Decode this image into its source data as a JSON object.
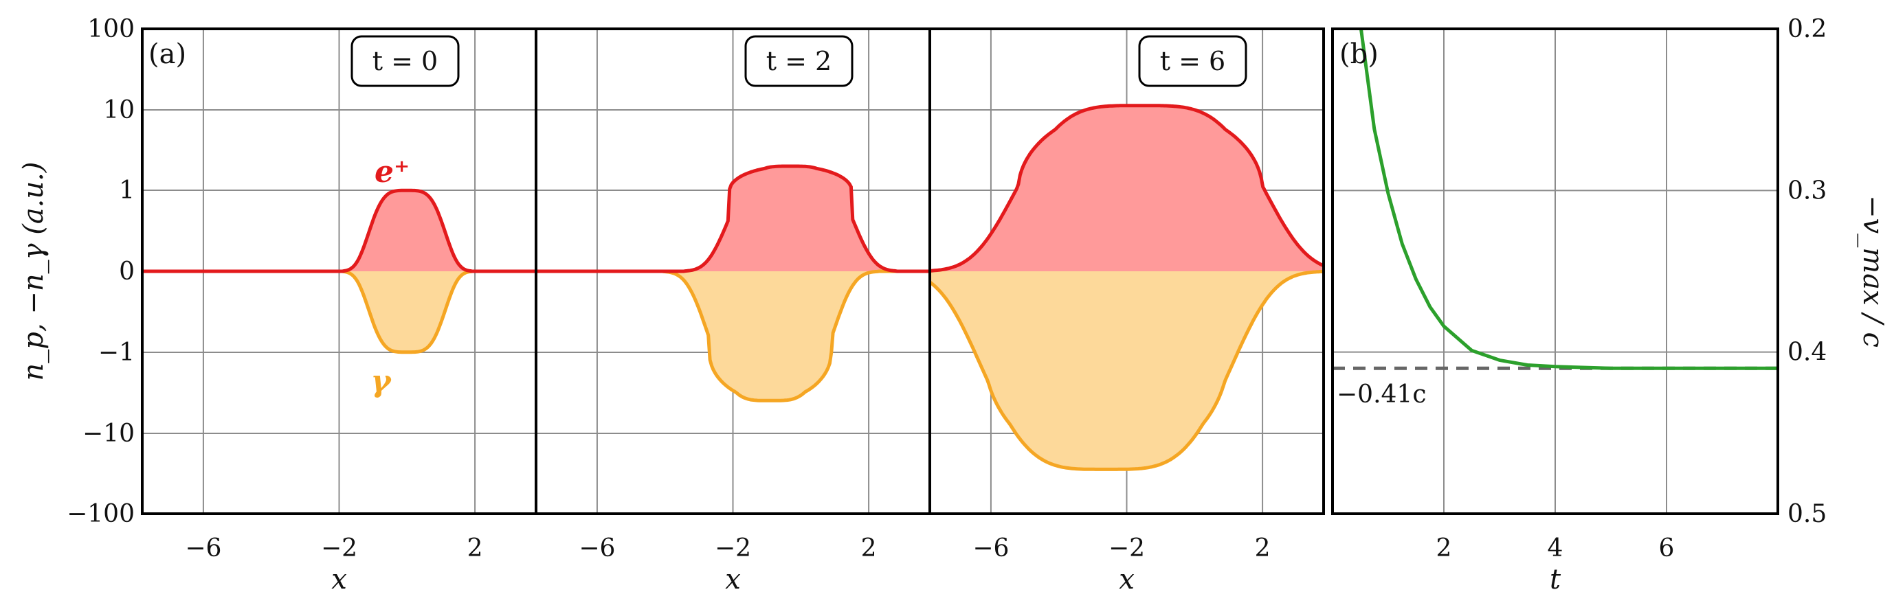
{
  "chart_data": [
    {
      "panel_label": "(a)",
      "type": "area",
      "ylabel": "n_p, −n_γ (a.u.)",
      "xlabel": "x",
      "y_ticks": [
        "100",
        "10",
        "1",
        "0",
        "−1",
        "−10",
        "−100"
      ],
      "x_ticks": [
        "−6",
        "−2",
        "2"
      ],
      "xlim": [
        -7.8,
        3.8
      ],
      "grid": true,
      "species_labels": {
        "positron": "e⁺",
        "photon": "γ"
      },
      "colors": {
        "positron_line": "#e31a1c",
        "positron_fill": "#ff9a9a",
        "photon_line": "#f5a623",
        "photon_fill": "#fdd99a"
      },
      "subpanels": [
        {
          "time_label": "t = 0",
          "positron": {
            "center": 0.0,
            "half_width": 1.1,
            "peak_sym": 1.0
          },
          "photon": {
            "center": 0.0,
            "half_width": 1.1,
            "peak_sym": -1.0
          }
        },
        {
          "time_label": "t = 2",
          "positron": {
            "center": -0.3,
            "half_width": 1.8,
            "peak_sym": 1.3
          },
          "photon": {
            "center": -0.9,
            "half_width": 1.8,
            "peak_sym": -1.6
          }
        },
        {
          "time_label": "t = 6",
          "positron": {
            "center": -1.6,
            "half_width": 3.6,
            "peak_sym": 2.05
          },
          "photon": {
            "center": -2.6,
            "half_width": 3.6,
            "peak_sym": -2.45
          }
        }
      ]
    },
    {
      "panel_label": "(b)",
      "type": "line",
      "xlabel": "t",
      "ylabel": "−v_max / c",
      "x_ticks": [
        "2",
        "4",
        "6"
      ],
      "y_ticks": [
        "0.2",
        "0.3",
        "0.4",
        "0.5"
      ],
      "xlim": [
        0,
        8
      ],
      "ylim": [
        0.2,
        0.5
      ],
      "y_inverted": true,
      "grid": true,
      "series": [
        {
          "x": [
            0.5,
            0.75,
            1.0,
            1.25,
            1.5,
            1.75,
            2.0,
            2.5,
            3.0,
            3.5,
            4.0,
            5.0,
            6.0,
            7.0,
            8.0
          ],
          "values": [
            0.197,
            0.262,
            0.302,
            0.333,
            0.355,
            0.372,
            0.384,
            0.399,
            0.405,
            0.408,
            0.409,
            0.41,
            0.41,
            0.41,
            0.41
          ]
        }
      ],
      "asymptote": {
        "value": 0.41,
        "label": "−0.41c"
      },
      "colors": {
        "line": "#2ca02c",
        "asymptote": "#666666"
      }
    }
  ]
}
